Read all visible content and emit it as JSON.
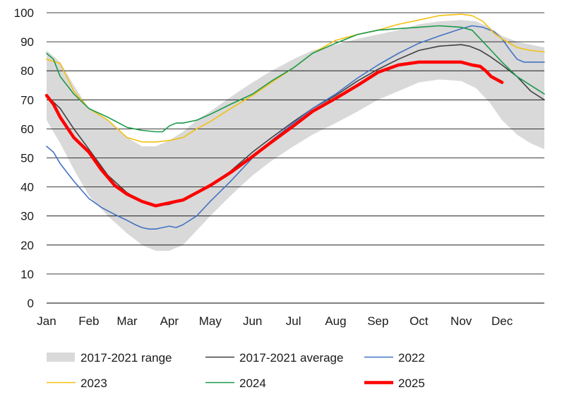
{
  "chart_data": {
    "type": "line",
    "title": "",
    "xlabel": "",
    "ylabel": "",
    "ylim": [
      0,
      100
    ],
    "y_ticks": [
      0,
      10,
      20,
      30,
      40,
      50,
      60,
      70,
      80,
      90,
      100
    ],
    "x_ticks": [
      {
        "label": "Jan",
        "day": 0
      },
      {
        "label": "Feb",
        "day": 31
      },
      {
        "label": "Mar",
        "day": 59
      },
      {
        "label": "Apr",
        "day": 90
      },
      {
        "label": "May",
        "day": 120
      },
      {
        "label": "Jun",
        "day": 151
      },
      {
        "label": "Jul",
        "day": 181
      },
      {
        "label": "Aug",
        "day": 212
      },
      {
        "label": "Sep",
        "day": 243
      },
      {
        "label": "Oct",
        "day": 273
      },
      {
        "label": "Nov",
        "day": 304
      },
      {
        "label": "Dec",
        "day": 334
      }
    ],
    "xlim_days": [
      0,
      365
    ],
    "grid": "horizontal",
    "legend_position": "bottom",
    "colors": {
      "range": "#d9d9d9",
      "average": "#404040",
      "y2022": "#4472c4",
      "y2023": "#f2c013",
      "y2024": "#1a9a4a",
      "y2025": "#ff0000",
      "grid": "#000000",
      "axis": "#000000"
    },
    "range": {
      "name": "2017-2021 range",
      "x": [
        0,
        10,
        20,
        31,
        45,
        59,
        70,
        80,
        90,
        100,
        110,
        120,
        135,
        151,
        165,
        181,
        195,
        212,
        228,
        243,
        258,
        273,
        288,
        304,
        315,
        325,
        334,
        345,
        355,
        365
      ],
      "upper": [
        87,
        83,
        75,
        67,
        63,
        57,
        54,
        54,
        56,
        59,
        63,
        66,
        71,
        76,
        80,
        84,
        87,
        89,
        91,
        92.5,
        94,
        96,
        97,
        97.5,
        97,
        95,
        92,
        90,
        89,
        88
      ],
      "lower": [
        63,
        55,
        46,
        37,
        30,
        24,
        20,
        18,
        18,
        20,
        25,
        30,
        37,
        44,
        49,
        54,
        58,
        62,
        66,
        70,
        73,
        76,
        77,
        76.5,
        74,
        69,
        63,
        58,
        55,
        53
      ]
    },
    "series": [
      {
        "name": "2017-2021 average",
        "key": "average",
        "width": 1.6,
        "x": [
          0,
          10,
          20,
          31,
          45,
          59,
          70,
          80,
          90,
          100,
          110,
          120,
          135,
          151,
          165,
          181,
          195,
          212,
          228,
          243,
          258,
          273,
          288,
          304,
          310,
          318,
          325,
          334,
          345,
          355,
          365
        ],
        "values": [
          71.5,
          67,
          60,
          53,
          44,
          38,
          35,
          33.5,
          34,
          35.5,
          38,
          40.5,
          45.5,
          52,
          57,
          62.5,
          67,
          71.5,
          76.5,
          80.5,
          84,
          87,
          88.5,
          89,
          88.5,
          87,
          85,
          82,
          78,
          73,
          70
        ]
      },
      {
        "name": "2022",
        "key": "y2022",
        "width": 1.6,
        "x": [
          0,
          5,
          10,
          20,
          31,
          40,
          50,
          59,
          65,
          70,
          75,
          80,
          85,
          90,
          95,
          100,
          110,
          120,
          135,
          151,
          165,
          181,
          195,
          212,
          228,
          243,
          258,
          273,
          288,
          304,
          312,
          320,
          328,
          334,
          340,
          345,
          350,
          355,
          365
        ],
        "values": [
          54,
          52,
          48,
          42,
          36,
          33,
          30.5,
          28.5,
          27,
          26,
          25.5,
          25.5,
          26,
          26.5,
          26,
          27,
          30,
          35,
          42,
          50,
          56,
          62,
          67,
          72,
          77.5,
          82,
          86,
          89.5,
          92,
          94.5,
          95.5,
          95,
          93.5,
          91,
          87,
          84,
          83,
          83,
          83
        ]
      },
      {
        "name": "2023",
        "key": "y2023",
        "width": 1.6,
        "x": [
          0,
          10,
          20,
          31,
          45,
          59,
          70,
          80,
          90,
          100,
          110,
          120,
          135,
          151,
          165,
          181,
          195,
          212,
          228,
          243,
          258,
          273,
          288,
          304,
          312,
          320,
          328,
          334,
          345,
          355,
          365
        ],
        "values": [
          84,
          82.5,
          73,
          67,
          63,
          57,
          55.5,
          55.5,
          56,
          57,
          60,
          62.5,
          67,
          71.5,
          76,
          81,
          86,
          90.5,
          92.5,
          94,
          96,
          97.5,
          99,
          99.5,
          99,
          97,
          93,
          91,
          88,
          87,
          86.5
        ]
      },
      {
        "name": "2024",
        "key": "y2024",
        "width": 1.6,
        "x": [
          0,
          5,
          10,
          20,
          31,
          45,
          59,
          70,
          80,
          85,
          90,
          95,
          100,
          110,
          120,
          135,
          151,
          165,
          181,
          195,
          212,
          228,
          243,
          258,
          273,
          288,
          304,
          312,
          320,
          328,
          334,
          345,
          355,
          365
        ],
        "values": [
          86,
          84,
          78,
          72,
          67,
          64,
          60.5,
          59.5,
          59,
          59,
          61,
          62,
          62,
          63,
          65,
          68.5,
          72,
          76.5,
          81,
          86,
          89.5,
          92.5,
          94,
          94.5,
          95,
          95.5,
          95,
          94,
          90,
          86,
          83,
          78,
          75,
          72
        ]
      },
      {
        "name": "2025",
        "key": "y2025",
        "width": 4.5,
        "x": [
          0,
          5,
          10,
          20,
          31,
          40,
          50,
          59,
          70,
          80,
          90,
          95,
          100,
          110,
          120,
          135,
          151,
          165,
          181,
          195,
          212,
          228,
          243,
          258,
          273,
          288,
          304,
          312,
          318,
          322,
          326,
          330,
          334
        ],
        "values": [
          71.5,
          68.5,
          64,
          57,
          52,
          46,
          40.5,
          37.5,
          35,
          33.5,
          34.5,
          35,
          35.5,
          38,
          40.5,
          45,
          50.5,
          55.5,
          61,
          66,
          70.5,
          75,
          79.5,
          82,
          83,
          83,
          83,
          82,
          81.5,
          80,
          78,
          77,
          76
        ]
      }
    ],
    "legend": {
      "range_label": "2017-2021 range",
      "average_label": "2017-2021 average",
      "y2022_label": "2022",
      "y2023_label": "2023",
      "y2024_label": "2024",
      "y2025_label": "2025"
    }
  }
}
